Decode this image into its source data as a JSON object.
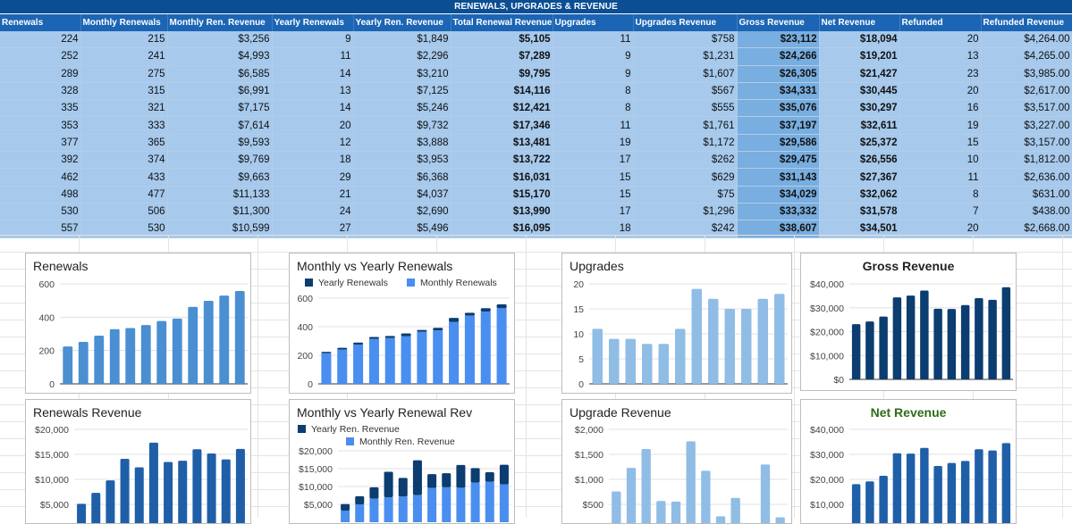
{
  "sheet_title": "RENEWALS, UPGRADES & REVENUE",
  "columns": [
    "Renewals",
    "Monthly Renewals",
    "Monthly Ren. Revenue",
    "Yearly Renewals",
    "Yearly Ren. Revenue",
    "Total Renewal Revenue",
    "Upgrades",
    "Upgrades Revenue",
    "Gross Revenue",
    "Net Revenue",
    "Refunded",
    "Refunded Revenue"
  ],
  "rows": [
    [
      "224",
      "215",
      "$3,256",
      "9",
      "$1,849",
      "$5,105",
      "11",
      "$758",
      "$23,112",
      "$18,094",
      "20",
      "$4,264.00"
    ],
    [
      "252",
      "241",
      "$4,993",
      "11",
      "$2,296",
      "$7,289",
      "9",
      "$1,231",
      "$24,266",
      "$19,201",
      "13",
      "$4,265.00"
    ],
    [
      "289",
      "275",
      "$6,585",
      "14",
      "$3,210",
      "$9,795",
      "9",
      "$1,607",
      "$26,305",
      "$21,427",
      "23",
      "$3,985.00"
    ],
    [
      "328",
      "315",
      "$6,991",
      "13",
      "$7,125",
      "$14,116",
      "8",
      "$567",
      "$34,331",
      "$30,445",
      "20",
      "$2,617.00"
    ],
    [
      "335",
      "321",
      "$7,175",
      "14",
      "$5,246",
      "$12,421",
      "8",
      "$555",
      "$35,076",
      "$30,297",
      "16",
      "$3,517.00"
    ],
    [
      "353",
      "333",
      "$7,614",
      "20",
      "$9,732",
      "$17,346",
      "11",
      "$1,761",
      "$37,197",
      "$32,611",
      "19",
      "$3,227.00"
    ],
    [
      "377",
      "365",
      "$9,593",
      "12",
      "$3,888",
      "$13,481",
      "19",
      "$1,172",
      "$29,586",
      "$25,372",
      "15",
      "$3,157.00"
    ],
    [
      "392",
      "374",
      "$9,769",
      "18",
      "$3,953",
      "$13,722",
      "17",
      "$262",
      "$29,475",
      "$26,556",
      "10",
      "$1,812.00"
    ],
    [
      "462",
      "433",
      "$9,663",
      "29",
      "$6,368",
      "$16,031",
      "15",
      "$629",
      "$31,143",
      "$27,367",
      "11",
      "$2,636.00"
    ],
    [
      "498",
      "477",
      "$11,133",
      "21",
      "$4,037",
      "$15,170",
      "15",
      "$75",
      "$34,029",
      "$32,062",
      "8",
      "$631.00"
    ],
    [
      "530",
      "506",
      "$11,300",
      "24",
      "$2,690",
      "$13,990",
      "17",
      "$1,296",
      "$33,332",
      "$31,578",
      "7",
      "$438.00"
    ],
    [
      "557",
      "530",
      "$10,599",
      "27",
      "$5,496",
      "$16,095",
      "18",
      "$242",
      "$38,607",
      "$34,501",
      "20",
      "$2,668.00"
    ]
  ],
  "colors": {
    "dark": "#0b3d70",
    "mid": "#1f5fa8",
    "bright": "#4a8ef0",
    "light": "#8fbde6",
    "medium": "#4a8fd1",
    "net_title": "#2f6d18"
  },
  "chart_data": [
    {
      "type": "bar",
      "title": "Renewals",
      "ylim": [
        0,
        600
      ],
      "yticks": [
        "0",
        "200",
        "400",
        "600"
      ],
      "values": [
        224,
        252,
        289,
        328,
        335,
        353,
        377,
        392,
        462,
        498,
        530,
        557
      ]
    },
    {
      "type": "bar",
      "stacked": true,
      "title": "Monthly vs Yearly Renewals",
      "ylim": [
        0,
        600
      ],
      "yticks": [
        "0",
        "200",
        "400",
        "600"
      ],
      "series": [
        {
          "name": "Yearly Renewals",
          "values": [
            9,
            11,
            14,
            13,
            14,
            20,
            12,
            18,
            29,
            21,
            24,
            27
          ]
        },
        {
          "name": "Monthly Renewals",
          "values": [
            215,
            241,
            275,
            315,
            321,
            333,
            365,
            374,
            433,
            477,
            506,
            530
          ]
        }
      ]
    },
    {
      "type": "bar",
      "title": "Upgrades",
      "ylim": [
        0,
        20
      ],
      "yticks": [
        "0",
        "5",
        "10",
        "15",
        "20"
      ],
      "values": [
        11,
        9,
        9,
        8,
        8,
        11,
        19,
        17,
        15,
        15,
        17,
        18
      ]
    },
    {
      "type": "bar",
      "title": "Gross Revenue",
      "ylim": [
        0,
        40000
      ],
      "yticks": [
        "$0",
        "$10,000",
        "$20,000",
        "$30,000",
        "$40,000"
      ],
      "values": [
        23112,
        24266,
        26305,
        34331,
        35076,
        37197,
        29586,
        29475,
        31143,
        34029,
        33332,
        38607
      ]
    },
    {
      "type": "bar",
      "title": "Renewals Revenue",
      "ylim": [
        0,
        20000
      ],
      "yticks": [
        "$5,000",
        "$10,000",
        "$15,000",
        "$20,000"
      ],
      "values": [
        5105,
        7289,
        9795,
        14116,
        12421,
        17346,
        13481,
        13722,
        16031,
        15170,
        13990,
        16095
      ]
    },
    {
      "type": "bar",
      "stacked": true,
      "title": "Monthly vs Yearly Renewal Rev",
      "ylim": [
        0,
        20000
      ],
      "yticks": [
        "$5,000",
        "$10,000",
        "$15,000",
        "$20,000"
      ],
      "series": [
        {
          "name": "Yearly Ren. Revenue",
          "values": [
            1849,
            2296,
            3210,
            7125,
            5246,
            9732,
            3888,
            3953,
            6368,
            4037,
            2690,
            5496
          ]
        },
        {
          "name": "Monthly Ren. Revenue",
          "values": [
            3256,
            4993,
            6585,
            6991,
            7175,
            7614,
            9593,
            9769,
            9663,
            11133,
            11300,
            10599
          ]
        }
      ]
    },
    {
      "type": "bar",
      "title": "Upgrade Revenue",
      "ylim": [
        0,
        2000
      ],
      "yticks": [
        "$500",
        "$1,000",
        "$1,500",
        "$2,000"
      ],
      "values": [
        758,
        1231,
        1607,
        567,
        555,
        1761,
        1172,
        262,
        629,
        75,
        1296,
        242
      ]
    },
    {
      "type": "bar",
      "title": "Net Revenue",
      "ylim": [
        0,
        40000
      ],
      "yticks": [
        "$10,000",
        "$20,000",
        "$30,000",
        "$40,000"
      ],
      "values": [
        18094,
        19201,
        21427,
        30445,
        30297,
        32611,
        25372,
        26556,
        27367,
        32062,
        31578,
        34501
      ]
    }
  ]
}
